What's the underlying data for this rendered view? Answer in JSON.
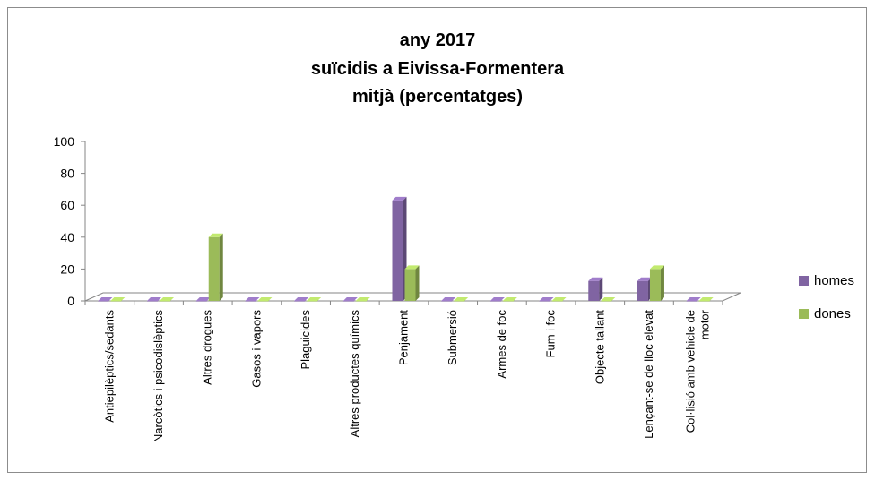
{
  "chart_data": {
    "type": "bar",
    "title_lines": [
      "any 2017",
      "suïcidis a Eivissa-Formentera",
      "mitjà (percentatges)"
    ],
    "categories": [
      [
        "Antiepilèptics/sedants"
      ],
      [
        "Narcòtics i psicodislèptics"
      ],
      [
        "Altres drogues"
      ],
      [
        "Gasos i vapors"
      ],
      [
        "Plaguicides"
      ],
      [
        "Altres productes químics"
      ],
      [
        "Penjament"
      ],
      [
        "Submersió"
      ],
      [
        "Armes de foc"
      ],
      [
        "Fum i foc"
      ],
      [
        "Objecte tallant"
      ],
      [
        "Lençant-se de lloc elevat"
      ],
      [
        "Col·lisió amb vehicle de",
        "motor"
      ]
    ],
    "series": [
      {
        "name": "homes",
        "color": "#8064a2",
        "values": [
          0,
          0,
          0,
          0,
          0,
          0,
          63,
          0,
          0,
          0,
          12.5,
          12.5,
          0
        ]
      },
      {
        "name": "dones",
        "color": "#9bbb59",
        "values": [
          0,
          0,
          40,
          0,
          0,
          0,
          20,
          0,
          0,
          0,
          0,
          20,
          0
        ]
      }
    ],
    "ylim": [
      0,
      100
    ],
    "yticks": [
      "0",
      "20",
      "40",
      "60",
      "80",
      "100"
    ],
    "legend_position": "right",
    "grid": false
  }
}
